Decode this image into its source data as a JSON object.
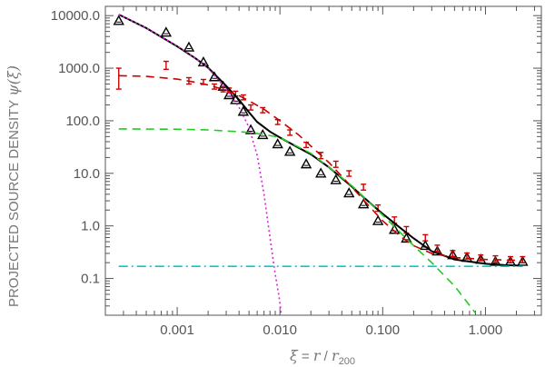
{
  "chart_data": {
    "type": "line",
    "xscale": "log",
    "yscale": "log",
    "xlim": [
      0.0002,
      3.5
    ],
    "ylim": [
      0.02,
      15000
    ],
    "grid": false,
    "xlabel": {
      "xi": "ξ",
      "eq": " = ",
      "r": "r",
      "slash": " / ",
      "r200_base": "r",
      "r200_sub": "200"
    },
    "ylabel": {
      "text": "PROJECTED SOURCE DENSITY  ",
      "psi": "ψ(ξ)"
    },
    "x_ticks": [
      {
        "value": 0.001,
        "label": "0.001"
      },
      {
        "value": 0.01,
        "label": "0.010"
      },
      {
        "value": 0.1,
        "label": "0.100"
      },
      {
        "value": 1,
        "label": "1.000"
      }
    ],
    "y_ticks": [
      {
        "value": 0.1,
        "label": "0.1"
      },
      {
        "value": 1,
        "label": "1.0"
      },
      {
        "value": 10,
        "label": "10.0"
      },
      {
        "value": 100,
        "label": "100.0"
      },
      {
        "value": 1000,
        "label": "1000.0"
      },
      {
        "value": 10000,
        "label": "10000.0"
      }
    ],
    "colors": {
      "axes": "#555555",
      "black_series": "#000000",
      "red_series": "#cc0000",
      "green_series": "#22cc22",
      "magenta_series": "#dd22dd",
      "cyan_series": "#00cccc"
    },
    "series": [
      {
        "id": "triangles",
        "marker": "triangle",
        "color": "#000000",
        "x": [
          0.00027,
          0.00078,
          0.0013,
          0.0018,
          0.0023,
          0.0028,
          0.0032,
          0.0037,
          0.0044,
          0.0052,
          0.0068,
          0.0095,
          0.0125,
          0.018,
          0.025,
          0.035,
          0.047,
          0.065,
          0.09,
          0.13,
          0.17,
          0.26,
          0.34,
          0.48,
          0.66,
          0.9,
          1.25,
          1.75,
          2.3
        ],
        "y": [
          8000,
          4800,
          2500,
          1300,
          680,
          450,
          310,
          250,
          150,
          67,
          54,
          36,
          26,
          15,
          10,
          7.5,
          4.2,
          2.6,
          1.25,
          0.85,
          0.58,
          0.42,
          0.33,
          0.28,
          0.25,
          0.23,
          0.21,
          0.21,
          0.21
        ]
      },
      {
        "id": "red-points",
        "marker": "errorbar",
        "color": "#cc0000",
        "x": [
          0.00027,
          0.00078,
          0.0013,
          0.0018,
          0.0023,
          0.0028,
          0.0032,
          0.0037,
          0.0044,
          0.0052,
          0.0068,
          0.0095,
          0.0125,
          0.018,
          0.025,
          0.035,
          0.047,
          0.065,
          0.09,
          0.13,
          0.17,
          0.26,
          0.34,
          0.48,
          0.66,
          0.9,
          1.25,
          1.75,
          2.3
        ],
        "y": [
          700,
          1150,
          580,
          550,
          450,
          400,
          380,
          330,
          280,
          180,
          160,
          95,
          60,
          35,
          22,
          15,
          10,
          5.5,
          2.2,
          1.3,
          0.85,
          0.6,
          0.38,
          0.3,
          0.27,
          0.25,
          0.24,
          0.23,
          0.23
        ],
        "yerr": [
          300,
          200,
          80,
          60,
          50,
          45,
          40,
          35,
          30,
          20,
          18,
          10,
          7,
          4,
          3,
          2,
          1.2,
          0.7,
          0.3,
          0.18,
          0.12,
          0.08,
          0.05,
          0.04,
          0.035,
          0.03,
          0.03,
          0.03,
          0.03
        ]
      },
      {
        "id": "black-fit",
        "style": "solid",
        "color": "#000000",
        "x": [
          0.00027,
          0.0005,
          0.001,
          0.0015,
          0.002,
          0.003,
          0.004,
          0.005,
          0.006,
          0.008,
          0.01,
          0.015,
          0.02,
          0.03,
          0.05,
          0.08,
          0.1,
          0.15,
          0.2,
          0.3,
          0.5,
          1.0,
          1.5,
          2.3
        ],
        "y": [
          10500,
          5800,
          2600,
          1550,
          1020,
          460,
          250,
          145,
          95,
          62,
          48,
          31,
          23,
          13,
          5.6,
          2.45,
          1.7,
          0.9,
          0.58,
          0.33,
          0.23,
          0.19,
          0.18,
          0.175
        ]
      },
      {
        "id": "red-fit",
        "style": "dashed",
        "color": "#cc0000",
        "x": [
          0.00027,
          0.0005,
          0.001,
          0.0015,
          0.002,
          0.003,
          0.004,
          0.005,
          0.007,
          0.01,
          0.015,
          0.02,
          0.03,
          0.05,
          0.08,
          0.1,
          0.15,
          0.2,
          0.3,
          0.5,
          1.0,
          2.3
        ],
        "y": [
          720,
          700,
          620,
          540,
          480,
          380,
          300,
          240,
          165,
          100,
          55,
          33,
          16,
          5.5,
          2.0,
          1.25,
          0.62,
          0.42,
          0.3,
          0.25,
          0.23,
          0.22
        ]
      },
      {
        "id": "green-fit",
        "style": "dashed",
        "color": "#22cc22",
        "x": [
          0.00027,
          0.001,
          0.002,
          0.003,
          0.005,
          0.007,
          0.01,
          0.02,
          0.03,
          0.05,
          0.1,
          0.2,
          0.3,
          0.5,
          0.8
        ],
        "y": [
          70,
          69,
          67,
          64,
          60,
          55,
          48,
          24,
          13,
          5.8,
          1.6,
          0.42,
          0.2,
          0.072,
          0.022
        ]
      },
      {
        "id": "magenta-fit",
        "style": "dotted",
        "color": "#dd22dd",
        "x": [
          0.00027,
          0.0005,
          0.001,
          0.0015,
          0.002,
          0.003,
          0.004,
          0.005,
          0.006,
          0.007,
          0.008,
          0.009,
          0.0098,
          0.0103
        ],
        "y": [
          10500,
          5800,
          2650,
          1550,
          1000,
          400,
          180,
          75,
          22,
          4.0,
          0.6,
          0.12,
          0.045,
          0.021
        ]
      },
      {
        "id": "cyan-background",
        "style": "dashdot",
        "color": "#00cccc",
        "x": [
          0.00027,
          2.3
        ],
        "y": [
          0.17,
          0.17
        ]
      }
    ]
  }
}
